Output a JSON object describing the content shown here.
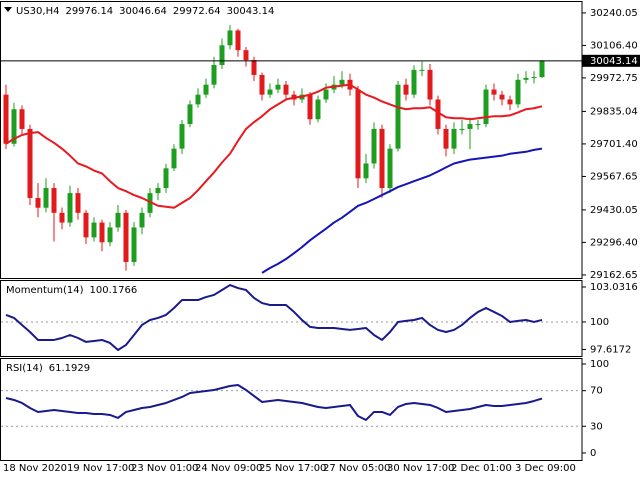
{
  "chart_data": [
    {
      "type": "candlestick",
      "title": "US30,H4",
      "open": [
        29904,
        29702,
        29844,
        29763,
        29479,
        29439,
        29520,
        29418,
        29378,
        29499,
        29418,
        29317,
        29378,
        29297,
        29358,
        29418,
        29216,
        29358,
        29418,
        29499,
        29520,
        29601,
        29682,
        29783,
        29864,
        29904,
        29945,
        30026,
        30107,
        30168,
        30087,
        30046,
        29985,
        29904,
        29925,
        29945,
        29904,
        29884,
        29904,
        29803,
        29884,
        29925,
        29945,
        29965,
        29925,
        29560,
        29621,
        29763,
        29520,
        29682,
        29945,
        29904,
        30006,
        30006,
        29884,
        29763,
        29682,
        29763,
        29763,
        29783,
        29783,
        29925,
        29904,
        29884,
        29864,
        29965,
        29973,
        29976.14
      ],
      "high": [
        29945,
        29870,
        29860,
        29780,
        29540,
        29560,
        29540,
        29440,
        29530,
        29520,
        29430,
        29400,
        29390,
        29380,
        29450,
        29430,
        29380,
        29440,
        29520,
        29540,
        29620,
        29700,
        29800,
        29880,
        29930,
        29970,
        30060,
        30135,
        30190,
        30175,
        30100,
        30060,
        29995,
        29950,
        29970,
        29960,
        29920,
        29930,
        29915,
        29900,
        29950,
        29980,
        30000,
        29990,
        29940,
        29660,
        29790,
        29780,
        29700,
        29960,
        29970,
        30025,
        30040,
        30030,
        29900,
        29780,
        29790,
        29800,
        29810,
        29800,
        29945,
        29950,
        29920,
        29900,
        29990,
        30000,
        30000,
        30046.64
      ],
      "low": [
        29680,
        29690,
        29740,
        29450,
        29400,
        29420,
        29300,
        29350,
        29360,
        29390,
        29290,
        29300,
        29260,
        29280,
        29340,
        29180,
        29200,
        29330,
        29400,
        29470,
        29500,
        29590,
        29660,
        29770,
        29850,
        29890,
        29930,
        30010,
        30090,
        30060,
        30020,
        29960,
        29880,
        29890,
        29910,
        29880,
        29860,
        29870,
        29780,
        29790,
        29870,
        29910,
        29930,
        29900,
        29520,
        29540,
        29600,
        29480,
        29500,
        29670,
        29880,
        29890,
        29980,
        29860,
        29740,
        29650,
        29660,
        29740,
        29680,
        29760,
        29770,
        29880,
        29860,
        29840,
        29850,
        29950,
        29950,
        29972.64
      ],
      "close": [
        29702,
        29844,
        29763,
        29479,
        29439,
        29520,
        29418,
        29378,
        29499,
        29418,
        29317,
        29378,
        29297,
        29358,
        29418,
        29216,
        29358,
        29418,
        29499,
        29520,
        29601,
        29682,
        29783,
        29864,
        29904,
        29945,
        30026,
        30107,
        30168,
        30087,
        30046,
        29985,
        29904,
        29925,
        29945,
        29904,
        29884,
        29904,
        29803,
        29884,
        29925,
        29945,
        29965,
        29925,
        29560,
        29621,
        29763,
        29520,
        29682,
        29945,
        29904,
        30006,
        30006,
        29884,
        29763,
        29682,
        29763,
        29763,
        29783,
        29783,
        29925,
        29904,
        29884,
        29864,
        29965,
        29973,
        29976.14,
        30043.14
      ],
      "up_color": "#1e9e1e",
      "down_color": "#e31a1c",
      "series": [
        {
          "color": "#e8191f",
          "values": [
            29702,
            29722,
            29738,
            29746,
            29750,
            29726,
            29706,
            29682,
            29653,
            29621,
            29609,
            29592,
            29580,
            29548,
            29520,
            29507,
            29491,
            29479,
            29463,
            29447,
            29443,
            29439,
            29459,
            29479,
            29511,
            29548,
            29584,
            29625,
            29661,
            29714,
            29763,
            29791,
            29815,
            29844,
            29864,
            29884,
            29892,
            29896,
            29904,
            29916,
            29933,
            29937,
            29941,
            29945,
            29925,
            29904,
            29892,
            29876,
            29864,
            29852,
            29844,
            29848,
            29848,
            29852,
            29831,
            29811,
            29807,
            29807,
            29803,
            29807,
            29811,
            29815,
            29815,
            29819,
            29831,
            29844,
            29848,
            29856
          ]
        },
        {
          "color": "#1414b8",
          "values": [
            null,
            null,
            null,
            null,
            null,
            null,
            null,
            null,
            null,
            null,
            null,
            null,
            null,
            null,
            null,
            null,
            null,
            null,
            null,
            null,
            null,
            null,
            null,
            null,
            null,
            null,
            null,
            null,
            null,
            null,
            null,
            null,
            29171,
            29191,
            29208,
            29228,
            29252,
            29277,
            29305,
            29329,
            29353,
            29378,
            29398,
            29422,
            29447,
            29459,
            29475,
            29491,
            29507,
            29524,
            29536,
            29548,
            29560,
            29572,
            29588,
            29605,
            29621,
            29629,
            29637,
            29641,
            29645,
            29649,
            29653,
            29661,
            29665,
            29669,
            29677,
            29682
          ]
        }
      ],
      "ylim": [
        29150,
        30285
      ],
      "yticks": [
        30240.05,
        {
          "value": 30106.4,
          "label": "30106.40"
        },
        29972.75,
        29835.04,
        {
          "value": 29701.4,
          "label": "29701.40"
        },
        29567.65,
        29430.05,
        {
          "value": 29296.4,
          "label": "29296.40"
        },
        29162.65
      ]
    },
    {
      "type": "line",
      "title": "Momentum(14)",
      "color": "#1a1a8c",
      "values": [
        100.61,
        100.35,
        99.74,
        99.13,
        98.44,
        98.44,
        98.44,
        98.61,
        98.87,
        98.61,
        98.27,
        98.35,
        98.44,
        98.18,
        97.57,
        98.01,
        98.87,
        99.74,
        100.17,
        100.35,
        100.61,
        101.21,
        101.9,
        101.9,
        101.9,
        102.16,
        102.34,
        102.77,
        103.2,
        102.94,
        102.77,
        102.08,
        101.64,
        101.47,
        101.47,
        101.47,
        100.87,
        100.17,
        99.57,
        99.48,
        99.48,
        99.48,
        99.39,
        99.31,
        99.39,
        99.48,
        98.87,
        98.44,
        99.13,
        100,
        100.09,
        100.17,
        100.35,
        99.74,
        99.31,
        99.13,
        99.31,
        99.74,
        100.35,
        100.87,
        101.21,
        100.87,
        100.52,
        100,
        100.09,
        100.17,
        100,
        100.1766
      ],
      "ylim": [
        97.05,
        103.55
      ],
      "yticks": [
        103.0316,
        100,
        97.6172
      ],
      "levels": [
        100
      ]
    },
    {
      "type": "line",
      "title": "RSI(14)",
      "color": "#1a1a8c",
      "values": [
        61.8,
        59.55,
        56.18,
        50.56,
        46.07,
        47.19,
        48.31,
        47.19,
        46.07,
        44.94,
        44.94,
        43.82,
        43.82,
        42.7,
        39.33,
        46.07,
        48.31,
        50.56,
        51.69,
        53.93,
        56.18,
        59.55,
        62.92,
        67.42,
        68.54,
        69.66,
        70.79,
        73.03,
        75.28,
        76.4,
        70.79,
        64.04,
        57.3,
        58.43,
        59.55,
        58.43,
        57.3,
        56.18,
        53.93,
        51.69,
        50.56,
        51.69,
        52.81,
        53.93,
        41.57,
        37.08,
        46.07,
        46.07,
        42.7,
        51.69,
        55.06,
        56.18,
        55.06,
        53.93,
        50.56,
        46.07,
        47.19,
        48.31,
        49.44,
        51.69,
        53.93,
        52.81,
        52.81,
        53.93,
        55.06,
        56.18,
        58.43,
        61.1929
      ],
      "ylim": [
        -7.9,
        105.6
      ],
      "yticks": [
        100,
        70,
        30,
        0
      ],
      "levels": [
        70,
        30
      ],
      "categories": [
        "18 Nov 2020",
        null,
        null,
        null,
        null,
        null,
        null,
        null,
        "19 Nov 17:00",
        null,
        null,
        null,
        null,
        null,
        null,
        null,
        "23 Nov 01:00",
        null,
        null,
        null,
        null,
        null,
        null,
        null,
        "24 Nov 09:00",
        null,
        null,
        null,
        null,
        null,
        null,
        null,
        "25 Nov 17:00",
        null,
        null,
        null,
        null,
        null,
        null,
        null,
        "27 Nov 05:00",
        null,
        null,
        null,
        null,
        null,
        null,
        null,
        "30 Nov 17:00",
        null,
        null,
        null,
        null,
        null,
        null,
        null,
        "2 Dec 01:00",
        null,
        null,
        null,
        null,
        null,
        null,
        null,
        "3 Dec 09:00",
        null,
        null,
        null
      ]
    }
  ]
}
